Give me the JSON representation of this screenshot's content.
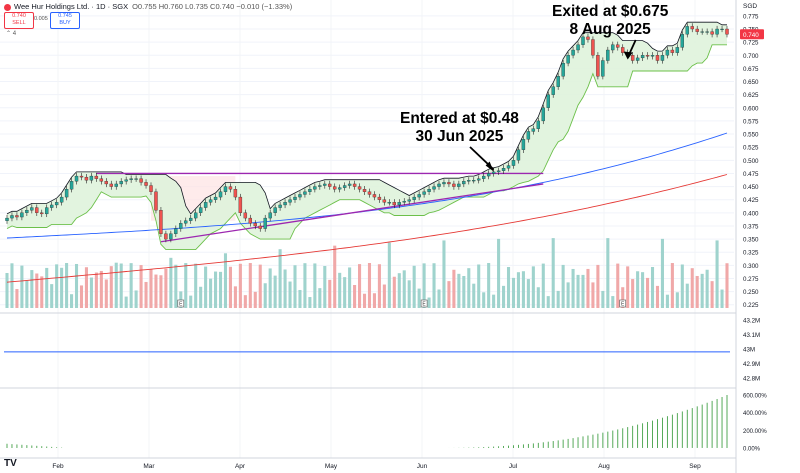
{
  "header": {
    "title": "Wee Hur Holdings Ltd. · 1D · SGX",
    "ohlc": "O0.755 H0.760 L0.735 C0.740 −0.010 (−1.33%)",
    "sell_price": "0.740",
    "sell_label": "SELL",
    "buy_price": "0.745",
    "buy_label": "BUY",
    "spread": "0.005",
    "currency": "SGD"
  },
  "annotations": {
    "exit": [
      "Exited at $0.675",
      "8 Aug 2025"
    ],
    "entry": [
      "Entered at $0.48",
      "30 Jun 2025"
    ]
  },
  "colors": {
    "up": "#26a69a",
    "down": "#ef5350",
    "vol_up": "#9fd3cd",
    "vol_down": "#f0a8a8",
    "trail_fill": "#dff3dc",
    "trail_line": "#6cc04a",
    "pink_fill": "#fde3e3",
    "ma_blue": "#2962ff",
    "ma_red": "#e53935",
    "channel": "#9c27b0",
    "accent_price": "#f23645"
  },
  "chart_data": {
    "type": "candlestick",
    "price_axis": {
      "ticks": [
        "0.775",
        "0.750",
        "0.725",
        "0.700",
        "0.675",
        "0.650",
        "0.625",
        "0.600",
        "0.575",
        "0.550",
        "0.525",
        "0.500",
        "0.475",
        "0.450",
        "0.425",
        "0.400",
        "0.375",
        "0.350",
        "0.325",
        "0.300",
        "0.275",
        "0.250",
        "0.225"
      ],
      "range": [
        0.215,
        0.79
      ],
      "last_price": "0.740"
    },
    "x_axis": {
      "labels": [
        "Feb",
        "Mar",
        "Apr",
        "May",
        "Jun",
        "Jul",
        "Aug",
        "Sep"
      ]
    },
    "closes": [
      0.39,
      0.395,
      0.392,
      0.4,
      0.405,
      0.41,
      0.4,
      0.398,
      0.41,
      0.415,
      0.42,
      0.43,
      0.445,
      0.46,
      0.47,
      0.468,
      0.462,
      0.47,
      0.465,
      0.46,
      0.455,
      0.45,
      0.455,
      0.46,
      0.463,
      0.465,
      0.465,
      0.458,
      0.452,
      0.44,
      0.405,
      0.36,
      0.35,
      0.36,
      0.37,
      0.38,
      0.385,
      0.39,
      0.4,
      0.41,
      0.42,
      0.425,
      0.43,
      0.44,
      0.45,
      0.445,
      0.43,
      0.4,
      0.39,
      0.38,
      0.375,
      0.37,
      0.39,
      0.4,
      0.41,
      0.415,
      0.42,
      0.425,
      0.43,
      0.435,
      0.44,
      0.445,
      0.45,
      0.452,
      0.455,
      0.45,
      0.445,
      0.448,
      0.452,
      0.455,
      0.45,
      0.445,
      0.44,
      0.435,
      0.43,
      0.425,
      0.42,
      0.42,
      0.415,
      0.42,
      0.422,
      0.425,
      0.43,
      0.435,
      0.44,
      0.445,
      0.45,
      0.455,
      0.458,
      0.455,
      0.45,
      0.455,
      0.46,
      0.462,
      0.462,
      0.465,
      0.47,
      0.475,
      0.478,
      0.48,
      0.485,
      0.49,
      0.5,
      0.52,
      0.54,
      0.555,
      0.56,
      0.575,
      0.6,
      0.625,
      0.64,
      0.66,
      0.685,
      0.7,
      0.71,
      0.72,
      0.735,
      0.73,
      0.7,
      0.66,
      0.69,
      0.71,
      0.72,
      0.715,
      0.705,
      0.7,
      0.69,
      0.695,
      0.7,
      0.698,
      0.7,
      0.69,
      0.7,
      0.71,
      0.705,
      0.715,
      0.74,
      0.755,
      0.75,
      0.745,
      0.745,
      0.745,
      0.74,
      0.75,
      0.75,
      0.74
    ],
    "volume_panel": {
      "ticks": [
        "43.2M",
        "43.1M",
        "43M",
        "42.9M",
        "42.8M"
      ],
      "range": [
        42.75,
        43.25
      ],
      "obv_value": 42.98
    },
    "oscillator_panel": {
      "ticks": [
        "600.00%",
        "400.00%",
        "200.00%",
        "0.00%"
      ],
      "range": [
        -80,
        680
      ],
      "final_value": 600
    },
    "markers": [
      "E"
    ]
  }
}
